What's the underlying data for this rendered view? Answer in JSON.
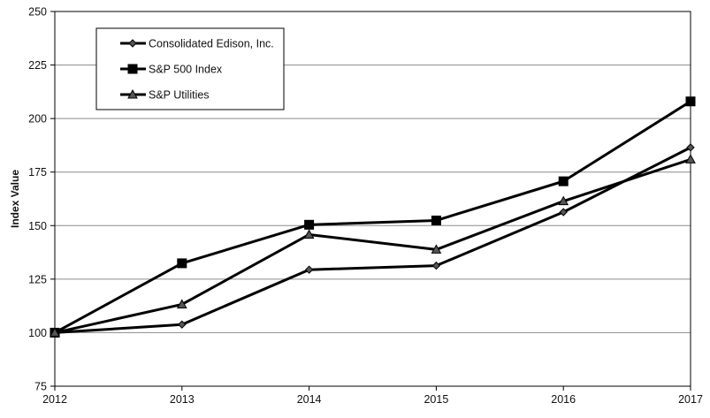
{
  "chart_data": {
    "type": "line",
    "title": "",
    "xlabel": "",
    "ylabel": "Index Value",
    "ylim": [
      75,
      250
    ],
    "yticks": [
      75,
      100,
      125,
      150,
      175,
      200,
      225,
      250
    ],
    "x": [
      "2012",
      "2013",
      "2014",
      "2015",
      "2016",
      "2017"
    ],
    "grid": "horizontal",
    "legend_position": "top-left",
    "series": [
      {
        "name": "Consolidated Edison, Inc.",
        "marker": "diamond",
        "color": "#000000",
        "values": [
          100,
          103.8,
          129.4,
          131.3,
          156.3,
          186.5
        ]
      },
      {
        "name": "S&P 500 Index",
        "marker": "square",
        "color": "#000000",
        "values": [
          100,
          132.4,
          150.4,
          152.4,
          170.7,
          208.0
        ]
      },
      {
        "name": "S&P Utilities",
        "marker": "triangle",
        "color": "#000000",
        "values": [
          100,
          113.2,
          145.8,
          138.8,
          161.4,
          180.9
        ]
      }
    ]
  }
}
